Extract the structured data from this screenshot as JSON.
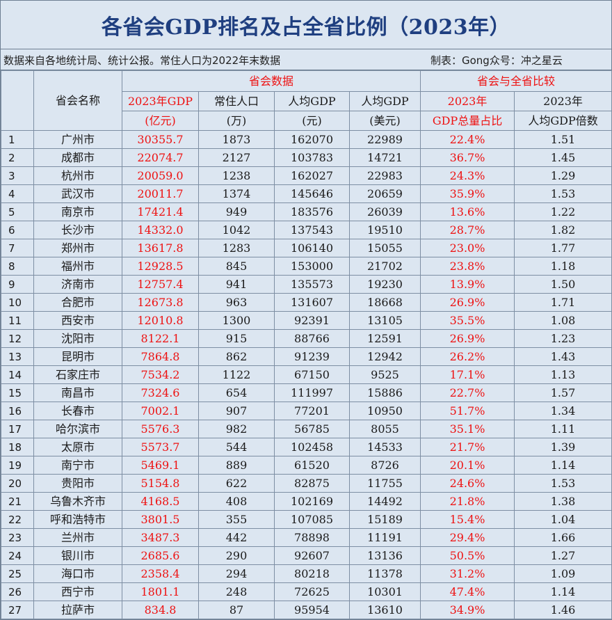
{
  "title": "各省会GDP排名及占全省比例（2023年）",
  "source_note": "数据来自各地统计局、统计公报。常住人口为2022年末数据",
  "credit": "制表：Gong众号：冲之星云",
  "header": {
    "city_name": "省会名称",
    "group_city_data": "省会数据",
    "group_compare": "省会与全省比较",
    "gdp_line1": "2023年GDP",
    "gdp_line2": "(亿元)",
    "pop_line1": "常住人口",
    "pop_line2": "(万)",
    "pc_line1": "人均GDP",
    "pc_line2": "(元)",
    "usd_line1": "人均GDP",
    "usd_line2": "(美元)",
    "share_line1": "2023年",
    "share_line2": "GDP总量占比",
    "ratio_line1": "2023年",
    "ratio_line2": "人均GDP倍数"
  },
  "rows": [
    {
      "rank": "1",
      "city": "广州市",
      "gdp": "30355.7",
      "pop": "1873",
      "gdp_pc": "162070",
      "gdp_pc_usd": "22989",
      "share": "22.4%",
      "ratio": "1.51"
    },
    {
      "rank": "2",
      "city": "成都市",
      "gdp": "22074.7",
      "pop": "2127",
      "gdp_pc": "103783",
      "gdp_pc_usd": "14721",
      "share": "36.7%",
      "ratio": "1.45"
    },
    {
      "rank": "3",
      "city": "杭州市",
      "gdp": "20059.0",
      "pop": "1238",
      "gdp_pc": "162027",
      "gdp_pc_usd": "22983",
      "share": "24.3%",
      "ratio": "1.29"
    },
    {
      "rank": "4",
      "city": "武汉市",
      "gdp": "20011.7",
      "pop": "1374",
      "gdp_pc": "145646",
      "gdp_pc_usd": "20659",
      "share": "35.9%",
      "ratio": "1.53"
    },
    {
      "rank": "5",
      "city": "南京市",
      "gdp": "17421.4",
      "pop": "949",
      "gdp_pc": "183576",
      "gdp_pc_usd": "26039",
      "share": "13.6%",
      "ratio": "1.22"
    },
    {
      "rank": "6",
      "city": "长沙市",
      "gdp": "14332.0",
      "pop": "1042",
      "gdp_pc": "137543",
      "gdp_pc_usd": "19510",
      "share": "28.7%",
      "ratio": "1.82"
    },
    {
      "rank": "7",
      "city": "郑州市",
      "gdp": "13617.8",
      "pop": "1283",
      "gdp_pc": "106140",
      "gdp_pc_usd": "15055",
      "share": "23.0%",
      "ratio": "1.77"
    },
    {
      "rank": "8",
      "city": "福州市",
      "gdp": "12928.5",
      "pop": "845",
      "gdp_pc": "153000",
      "gdp_pc_usd": "21702",
      "share": "23.8%",
      "ratio": "1.18"
    },
    {
      "rank": "9",
      "city": "济南市",
      "gdp": "12757.4",
      "pop": "941",
      "gdp_pc": "135573",
      "gdp_pc_usd": "19230",
      "share": "13.9%",
      "ratio": "1.50"
    },
    {
      "rank": "10",
      "city": "合肥市",
      "gdp": "12673.8",
      "pop": "963",
      "gdp_pc": "131607",
      "gdp_pc_usd": "18668",
      "share": "26.9%",
      "ratio": "1.71"
    },
    {
      "rank": "11",
      "city": "西安市",
      "gdp": "12010.8",
      "pop": "1300",
      "gdp_pc": "92391",
      "gdp_pc_usd": "13105",
      "share": "35.5%",
      "ratio": "1.08"
    },
    {
      "rank": "12",
      "city": "沈阳市",
      "gdp": "8122.1",
      "pop": "915",
      "gdp_pc": "88766",
      "gdp_pc_usd": "12591",
      "share": "26.9%",
      "ratio": "1.23"
    },
    {
      "rank": "13",
      "city": "昆明市",
      "gdp": "7864.8",
      "pop": "862",
      "gdp_pc": "91239",
      "gdp_pc_usd": "12942",
      "share": "26.2%",
      "ratio": "1.43"
    },
    {
      "rank": "14",
      "city": "石家庄市",
      "gdp": "7534.2",
      "pop": "1122",
      "gdp_pc": "67150",
      "gdp_pc_usd": "9525",
      "share": "17.1%",
      "ratio": "1.13"
    },
    {
      "rank": "15",
      "city": "南昌市",
      "gdp": "7324.6",
      "pop": "654",
      "gdp_pc": "111997",
      "gdp_pc_usd": "15886",
      "share": "22.7%",
      "ratio": "1.57"
    },
    {
      "rank": "16",
      "city": "长春市",
      "gdp": "7002.1",
      "pop": "907",
      "gdp_pc": "77201",
      "gdp_pc_usd": "10950",
      "share": "51.7%",
      "ratio": "1.34"
    },
    {
      "rank": "17",
      "city": "哈尔滨市",
      "gdp": "5576.3",
      "pop": "982",
      "gdp_pc": "56785",
      "gdp_pc_usd": "8055",
      "share": "35.1%",
      "ratio": "1.11"
    },
    {
      "rank": "18",
      "city": "太原市",
      "gdp": "5573.7",
      "pop": "544",
      "gdp_pc": "102458",
      "gdp_pc_usd": "14533",
      "share": "21.7%",
      "ratio": "1.39"
    },
    {
      "rank": "19",
      "city": "南宁市",
      "gdp": "5469.1",
      "pop": "889",
      "gdp_pc": "61520",
      "gdp_pc_usd": "8726",
      "share": "20.1%",
      "ratio": "1.14"
    },
    {
      "rank": "20",
      "city": "贵阳市",
      "gdp": "5154.8",
      "pop": "622",
      "gdp_pc": "82875",
      "gdp_pc_usd": "11755",
      "share": "24.6%",
      "ratio": "1.53"
    },
    {
      "rank": "21",
      "city": "乌鲁木齐市",
      "gdp": "4168.5",
      "pop": "408",
      "gdp_pc": "102169",
      "gdp_pc_usd": "14492",
      "share": "21.8%",
      "ratio": "1.38"
    },
    {
      "rank": "22",
      "city": "呼和浩特市",
      "gdp": "3801.5",
      "pop": "355",
      "gdp_pc": "107085",
      "gdp_pc_usd": "15189",
      "share": "15.4%",
      "ratio": "1.04"
    },
    {
      "rank": "23",
      "city": "兰州市",
      "gdp": "3487.3",
      "pop": "442",
      "gdp_pc": "78898",
      "gdp_pc_usd": "11191",
      "share": "29.4%",
      "ratio": "1.66"
    },
    {
      "rank": "24",
      "city": "银川市",
      "gdp": "2685.6",
      "pop": "290",
      "gdp_pc": "92607",
      "gdp_pc_usd": "13136",
      "share": "50.5%",
      "ratio": "1.27"
    },
    {
      "rank": "25",
      "city": "海口市",
      "gdp": "2358.4",
      "pop": "294",
      "gdp_pc": "80218",
      "gdp_pc_usd": "11378",
      "share": "31.2%",
      "ratio": "1.09"
    },
    {
      "rank": "26",
      "city": "西宁市",
      "gdp": "1801.1",
      "pop": "248",
      "gdp_pc": "72625",
      "gdp_pc_usd": "10301",
      "share": "47.4%",
      "ratio": "1.14"
    },
    {
      "rank": "27",
      "city": "拉萨市",
      "gdp": "834.8",
      "pop": "87",
      "gdp_pc": "95954",
      "gdp_pc_usd": "13610",
      "share": "34.9%",
      "ratio": "1.46"
    }
  ],
  "colors": {
    "header_bg": "#dce6f1",
    "title_text": "#1f3f80",
    "highlight_red": "#ee1111",
    "grid_line": "#7d8ea3"
  }
}
